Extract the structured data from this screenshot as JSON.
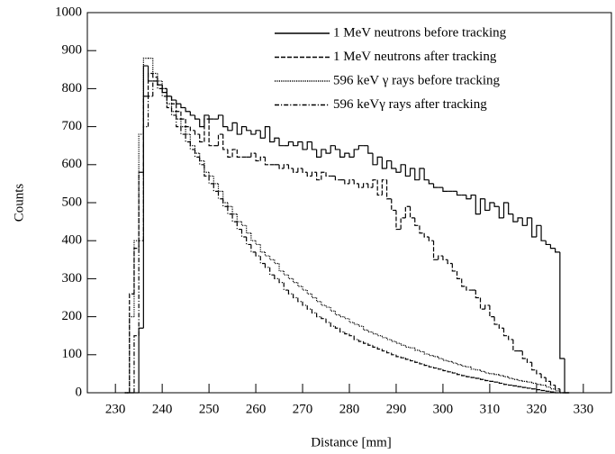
{
  "chart_data": {
    "type": "histogram",
    "x_label": "Distance [mm]",
    "y_label": "Counts",
    "bins": [
      232,
      233,
      234,
      235,
      236,
      237,
      238,
      239,
      240,
      241,
      242,
      243,
      244,
      245,
      246,
      247,
      248,
      249,
      250,
      251,
      252,
      253,
      254,
      255,
      256,
      257,
      258,
      259,
      260,
      261,
      262,
      263,
      264,
      265,
      266,
      267,
      268,
      269,
      270,
      271,
      272,
      273,
      274,
      275,
      276,
      277,
      278,
      279,
      280,
      281,
      282,
      283,
      284,
      285,
      286,
      287,
      288,
      289,
      290,
      291,
      292,
      293,
      294,
      295,
      296,
      297,
      298,
      299,
      300,
      301,
      302,
      303,
      304,
      305,
      306,
      307,
      308,
      309,
      310,
      311,
      312,
      313,
      314,
      315,
      316,
      317,
      318,
      319,
      320,
      321,
      322,
      323,
      324,
      325,
      326,
      327
    ],
    "series": [
      {
        "name": "1 MeV neutrons before tracking",
        "color": "#000000",
        "line_style": "solid",
        "values": [
          0,
          0,
          0,
          170,
          860,
          820,
          820,
          810,
          790,
          780,
          770,
          760,
          750,
          740,
          730,
          720,
          700,
          730,
          720,
          720,
          730,
          700,
          690,
          710,
          680,
          700,
          690,
          680,
          690,
          670,
          700,
          660,
          670,
          650,
          650,
          660,
          650,
          660,
          640,
          660,
          640,
          620,
          640,
          630,
          650,
          640,
          620,
          630,
          620,
          640,
          650,
          650,
          630,
          600,
          620,
          590,
          610,
          590,
          580,
          600,
          570,
          590,
          560,
          590,
          560,
          550,
          540,
          540,
          530,
          530,
          530,
          520,
          520,
          510,
          520,
          470,
          510,
          480,
          500,
          490,
          460,
          500,
          470,
          450,
          460,
          440,
          460,
          410,
          440,
          400,
          390,
          380,
          370,
          90,
          0
        ]
      },
      {
        "name": "1 MeV neutrons after tracking",
        "color": "#000000",
        "line_style": "dashed",
        "values": [
          0,
          260,
          380,
          580,
          780,
          840,
          830,
          810,
          800,
          780,
          760,
          740,
          720,
          700,
          690,
          680,
          660,
          720,
          650,
          650,
          680,
          640,
          620,
          640,
          620,
          620,
          620,
          630,
          610,
          620,
          600,
          600,
          600,
          590,
          600,
          590,
          580,
          590,
          580,
          570,
          580,
          560,
          580,
          570,
          570,
          560,
          560,
          550,
          560,
          550,
          540,
          550,
          540,
          560,
          520,
          560,
          510,
          480,
          430,
          460,
          490,
          460,
          440,
          420,
          410,
          400,
          350,
          360,
          350,
          340,
          320,
          300,
          280,
          270,
          270,
          250,
          220,
          230,
          200,
          180,
          170,
          150,
          140,
          110,
          110,
          90,
          80,
          60,
          50,
          40,
          30,
          20,
          10,
          0,
          0
        ]
      },
      {
        "name": "596 keV γ rays before tracking",
        "color": "#000000",
        "line_style": "dotted",
        "values": [
          0,
          200,
          400,
          680,
          880,
          880,
          840,
          820,
          800,
          760,
          740,
          720,
          700,
          680,
          650,
          630,
          610,
          580,
          570,
          550,
          530,
          500,
          490,
          470,
          450,
          440,
          420,
          400,
          390,
          370,
          360,
          350,
          340,
          320,
          310,
          300,
          290,
          280,
          270,
          260,
          250,
          240,
          230,
          225,
          215,
          205,
          200,
          195,
          185,
          180,
          175,
          165,
          160,
          155,
          150,
          145,
          140,
          135,
          130,
          125,
          120,
          118,
          112,
          108,
          102,
          98,
          95,
          90,
          85,
          82,
          78,
          74,
          70,
          68,
          62,
          60,
          56,
          52,
          50,
          48,
          45,
          42,
          38,
          35,
          32,
          30,
          28,
          25,
          22,
          20,
          15,
          10,
          5,
          0,
          0
        ]
      },
      {
        "name": "596 keVγ rays after tracking",
        "color": "#000000",
        "line_style": "dashdot",
        "values": [
          0,
          0,
          150,
          400,
          700,
          780,
          820,
          800,
          780,
          750,
          730,
          700,
          680,
          660,
          640,
          620,
          600,
          570,
          550,
          530,
          510,
          490,
          470,
          450,
          430,
          410,
          390,
          370,
          360,
          340,
          330,
          310,
          300,
          290,
          270,
          260,
          250,
          240,
          230,
          220,
          210,
          200,
          195,
          185,
          175,
          170,
          160,
          155,
          150,
          140,
          135,
          130,
          125,
          120,
          115,
          110,
          105,
          100,
          95,
          92,
          88,
          84,
          80,
          76,
          72,
          68,
          65,
          62,
          58,
          55,
          52,
          48,
          45,
          42,
          40,
          38,
          35,
          32,
          30,
          28,
          25,
          22,
          20,
          18,
          16,
          14,
          12,
          10,
          8,
          6,
          4,
          2,
          0,
          0,
          0
        ]
      }
    ],
    "xlim": [
      224,
      336
    ],
    "ylim": [
      0,
      1000
    ],
    "xticks": [
      230,
      240,
      250,
      260,
      270,
      280,
      290,
      300,
      310,
      320,
      330
    ],
    "yticks": [
      0,
      100,
      200,
      300,
      400,
      500,
      600,
      700,
      800,
      900,
      1000
    ],
    "legend": "top-right"
  }
}
